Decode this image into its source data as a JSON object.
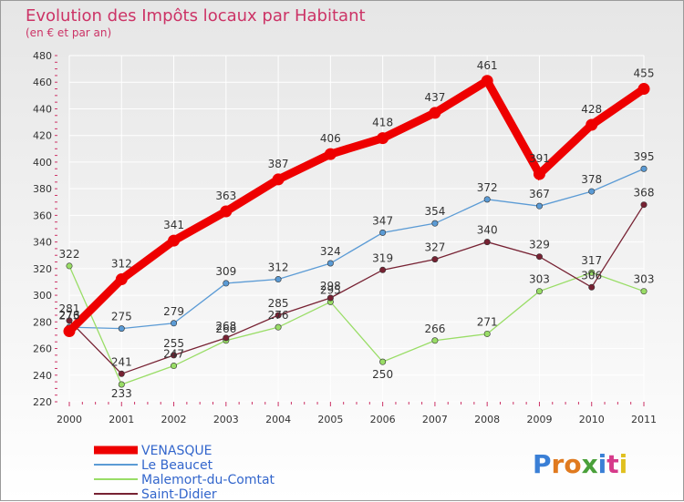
{
  "chart_data": {
    "type": "line",
    "title": "Evolution des Impôts locaux par Habitant",
    "subtitle": "(en € et par an)",
    "xlabel": "",
    "ylabel": "",
    "ylim": [
      220,
      480
    ],
    "y_ticks": [
      "220",
      "240",
      "260",
      "280",
      "300",
      "320",
      "340",
      "360",
      "380",
      "400",
      "420",
      "440",
      "460",
      "480"
    ],
    "grid": true,
    "legend_position": "bottom-left",
    "x": [
      "2000",
      "2001",
      "2002",
      "2003",
      "2004",
      "2005",
      "2006",
      "2007",
      "2008",
      "2009",
      "2010",
      "2011"
    ],
    "series": [
      {
        "name": "VENASQUE",
        "color": "#ee0000",
        "values": [
          273,
          312,
          341,
          363,
          387,
          406,
          418,
          437,
          461,
          391,
          428,
          455
        ],
        "labels": [
          "273",
          "312",
          "341",
          "363",
          "387",
          "406",
          "418",
          "437",
          "461",
          "391",
          "428",
          "455"
        ]
      },
      {
        "name": "Le Beaucet",
        "color": "#5b9bd5",
        "values": [
          276,
          275,
          279,
          309,
          312,
          324,
          347,
          354,
          372,
          367,
          378,
          395
        ],
        "labels": [
          "276",
          "275",
          "279",
          "309",
          "312",
          "324",
          "347",
          "354",
          "372",
          "367",
          "378",
          "395"
        ]
      },
      {
        "name": "Malemort-du-Comtat",
        "color": "#99dd66",
        "values": [
          322,
          233,
          247,
          266,
          276,
          295,
          250,
          266,
          271,
          303,
          317,
          303
        ],
        "labels": [
          "322",
          "233",
          "247",
          "266",
          "276",
          "295",
          "250",
          "266",
          "271",
          "303",
          "317",
          "303"
        ]
      },
      {
        "name": "Saint-Didier",
        "color": "#772233",
        "values": [
          281,
          241,
          255,
          268,
          285,
          298,
          319,
          327,
          340,
          329,
          306,
          368
        ],
        "labels": [
          "281",
          "241",
          "255",
          "268",
          "285",
          "298",
          "319",
          "327",
          "340",
          "329",
          "306",
          "368"
        ]
      }
    ]
  },
  "logo": {
    "text": "Proxiti"
  }
}
